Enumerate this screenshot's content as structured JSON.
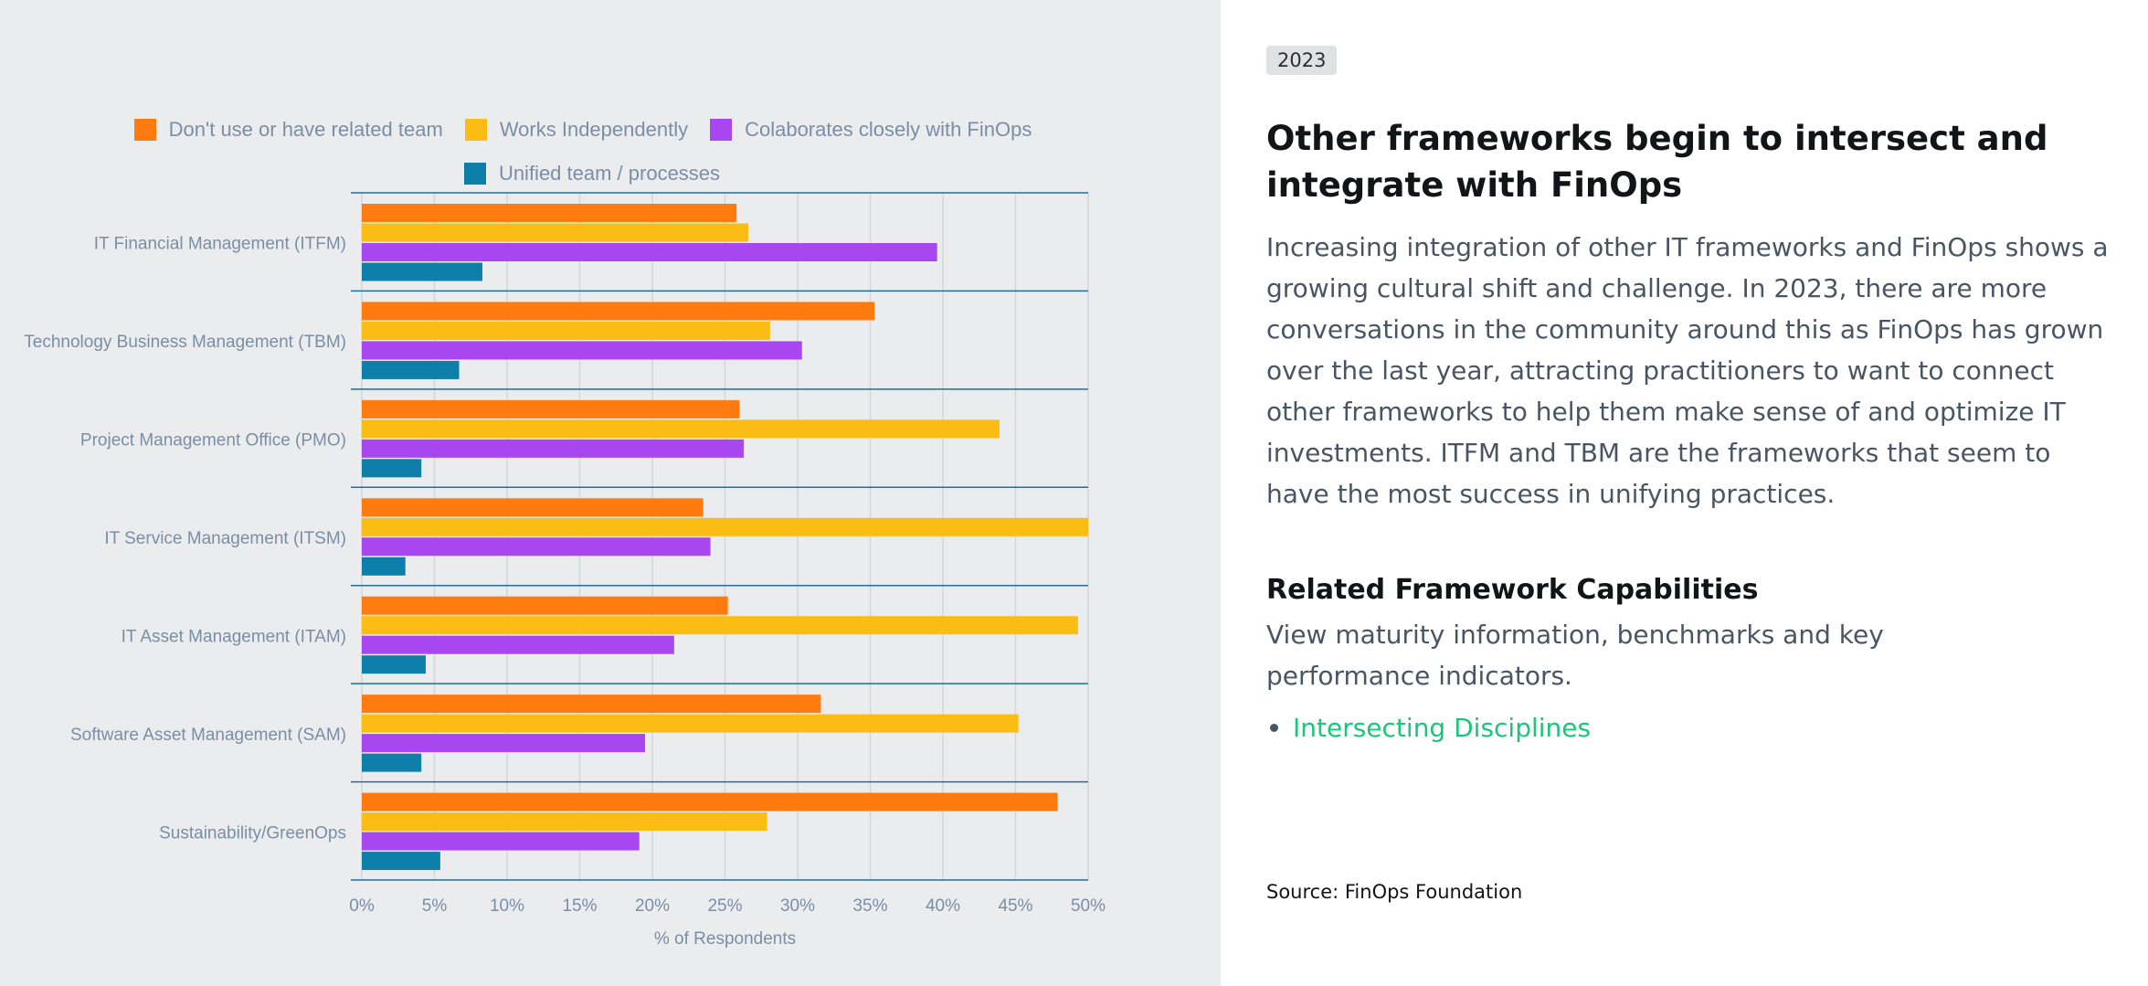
{
  "chart_data": {
    "type": "bar",
    "orientation": "horizontal",
    "categories": [
      "IT Financial Management (ITFM)",
      "Technology Business Management (TBM)",
      "Project Management Office (PMO)",
      "IT Service Management (ITSM)",
      "IT Asset Management (ITAM)",
      "Software Asset Management (SAM)",
      "Sustainability/GreenOps"
    ],
    "series": [
      {
        "name": "Don't use or have related team",
        "color": "#ff7b0f",
        "values": [
          25.8,
          35.3,
          26.0,
          23.5,
          25.2,
          31.6,
          47.9
        ]
      },
      {
        "name": "Works Independently",
        "color": "#fbbc14",
        "values": [
          26.6,
          28.1,
          43.9,
          50.0,
          49.3,
          45.2,
          27.9
        ]
      },
      {
        "name": "Colaborates closely with FinOps",
        "color": "#a846f0",
        "values": [
          39.6,
          30.3,
          26.3,
          24.0,
          21.5,
          19.5,
          19.1
        ]
      },
      {
        "name": "Unified team / processes",
        "color": "#0d7fa8",
        "values": [
          8.3,
          6.7,
          4.1,
          3.0,
          4.4,
          4.1,
          5.4
        ]
      }
    ],
    "xlabel": "% of Respondents",
    "ylabel": "",
    "xlim": [
      0,
      50
    ],
    "xticks": [
      "0%",
      "5%",
      "10%",
      "15%",
      "20%",
      "25%",
      "30%",
      "35%",
      "40%",
      "45%",
      "50%"
    ],
    "grid": true,
    "legend_position": "top"
  },
  "year_badge": "2023",
  "headline": "Other frameworks begin to intersect and integrate with FinOps",
  "body": "Increasing integration of other IT frameworks and FinOps shows a growing cultural shift and challenge. In 2023, there are more conversations in the community around this as FinOps has grown over the last year, attracting practitioners to want to connect other frameworks to help them make sense of and optimize IT investments. ITFM and TBM are the frameworks that seem to have the most success in unifying practices.",
  "related": {
    "title": "Related Framework Capabilities",
    "description": "View maturity information, benchmarks and key performance indicators.",
    "links": [
      "Intersecting Disciplines"
    ]
  },
  "source": "Source: FinOps Foundation",
  "colors": {
    "chart_background": "#ebecee",
    "link": "#1ec47a",
    "axis_text": "#7a8ea6",
    "divider": "#1c6f9e"
  }
}
